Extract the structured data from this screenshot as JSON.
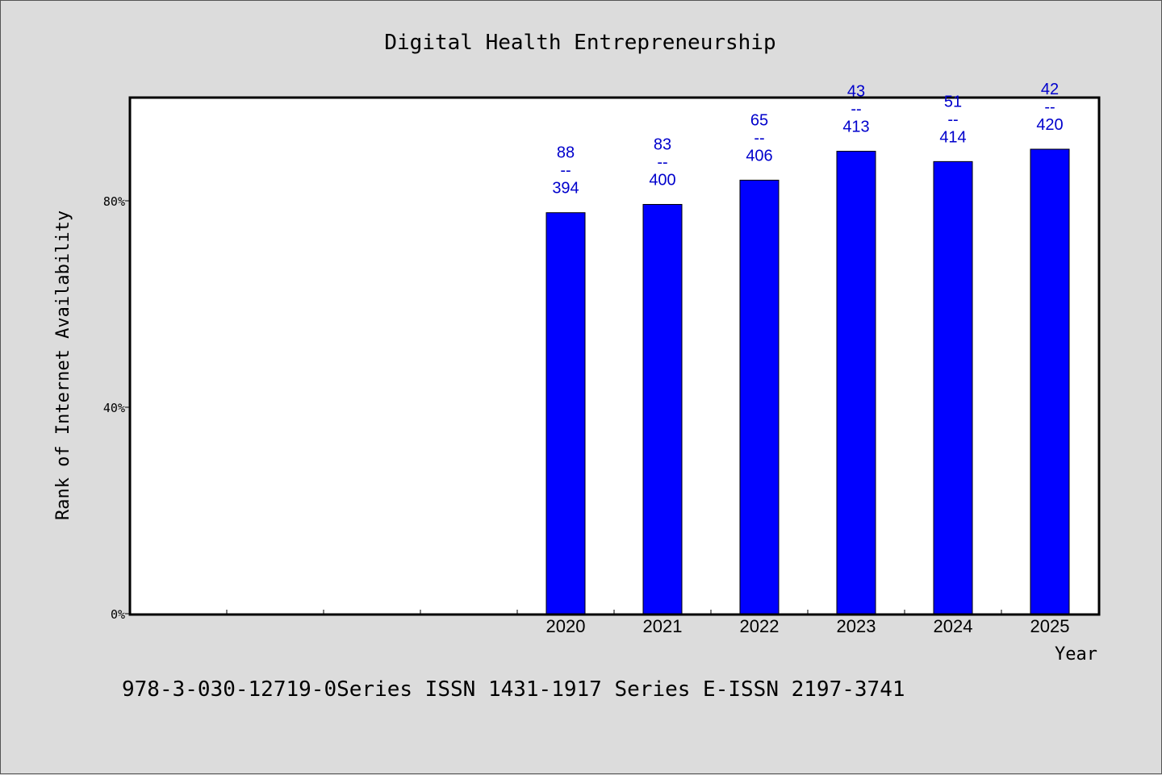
{
  "chart_data": {
    "type": "bar",
    "title": "Digital Health Entrepreneurship",
    "xlabel": "Year",
    "ylabel": "Rank of Internet Availability",
    "ytick_labels": [
      "0%",
      "40%",
      "80%"
    ],
    "ytick_values": [
      0,
      40,
      80
    ],
    "ylim": [
      0,
      100
    ],
    "categories": [
      "2020",
      "2021",
      "2022",
      "2023",
      "2024",
      "2025"
    ],
    "values": [
      77.7,
      79.3,
      84.0,
      89.6,
      87.6,
      90.0
    ],
    "data_labels": [
      {
        "top": "88",
        "sep": "--",
        "bottom": "394"
      },
      {
        "top": "83",
        "sep": "--",
        "bottom": "400"
      },
      {
        "top": "65",
        "sep": "--",
        "bottom": "406"
      },
      {
        "top": "43",
        "sep": "--",
        "bottom": "413"
      },
      {
        "top": "51",
        "sep": "--",
        "bottom": "414"
      },
      {
        "top": "42",
        "sep": "--",
        "bottom": "420"
      }
    ],
    "bar_color": "#0000ff",
    "label_color": "#0000cc",
    "grid": false
  },
  "footnote": "978-3-030-12719-0Series ISSN 1431-1917 Series E-ISSN 2197-3741"
}
